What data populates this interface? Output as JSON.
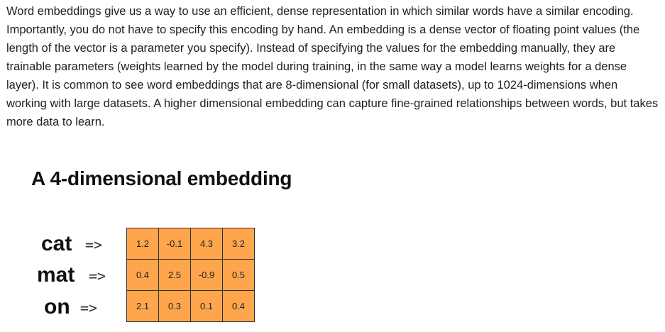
{
  "paragraph": "Word embeddings give us a way to use an efficient, dense representation in which similar words have a similar encoding. Importantly, you do not have to specify this encoding by hand. An embedding is a dense vector of floating point values (the length of the vector is a parameter you specify). Instead of specifying the values for the embedding manually, they are trainable parameters (weights learned by the model during training, in the same way a model learns weights for a dense layer). It is common to see word embeddings that are 8-dimensional (for small datasets), up to 1024-dimensions when working with large datasets. A higher dimensional embedding can capture fine-grained relationships between words, but takes more data to learn.",
  "figure": {
    "title": "A 4-dimensional embedding",
    "arrow": "=>",
    "rows": [
      {
        "word": "cat",
        "values": [
          "1.2",
          "-0.1",
          "4.3",
          "3.2"
        ]
      },
      {
        "word": "mat",
        "values": [
          "0.4",
          "2.5",
          "-0.9",
          "0.5"
        ]
      },
      {
        "word": "on",
        "values": [
          "2.1",
          "0.3",
          "0.1",
          "0.4"
        ]
      }
    ],
    "cell_color": "#ffa64d"
  }
}
